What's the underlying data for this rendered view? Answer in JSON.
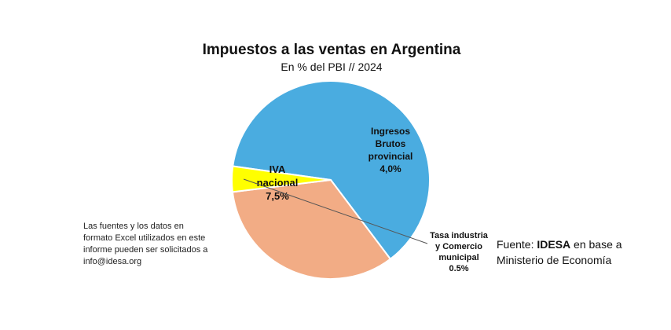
{
  "chart_data": {
    "type": "pie",
    "title": "Impuestos a las ventas en Argentina",
    "subtitle": "En % del PBI // 2024",
    "unit": "% del PBI",
    "slices": [
      {
        "label_lines": [
          "IVA",
          "nacional",
          "7,5%"
        ],
        "value": 7.5,
        "color": "#4aace0"
      },
      {
        "label_lines": [
          "Ingresos",
          "Brutos",
          "provincial",
          "4,0%"
        ],
        "value": 4.0,
        "color": "#f2ac85"
      },
      {
        "label_lines": [
          "Tasa industria",
          "y Comercio",
          "municipal",
          "0.5%"
        ],
        "value": 0.5,
        "color": "#ffff00"
      }
    ]
  },
  "note": "Las fuentes y los datos en formato Excel utilizados en este informe pueden ser solicitados a info@idesa.org",
  "source": {
    "prefix": "Fuente: ",
    "org": "IDESA",
    "suffix": " en base a Ministerio de Economía"
  }
}
